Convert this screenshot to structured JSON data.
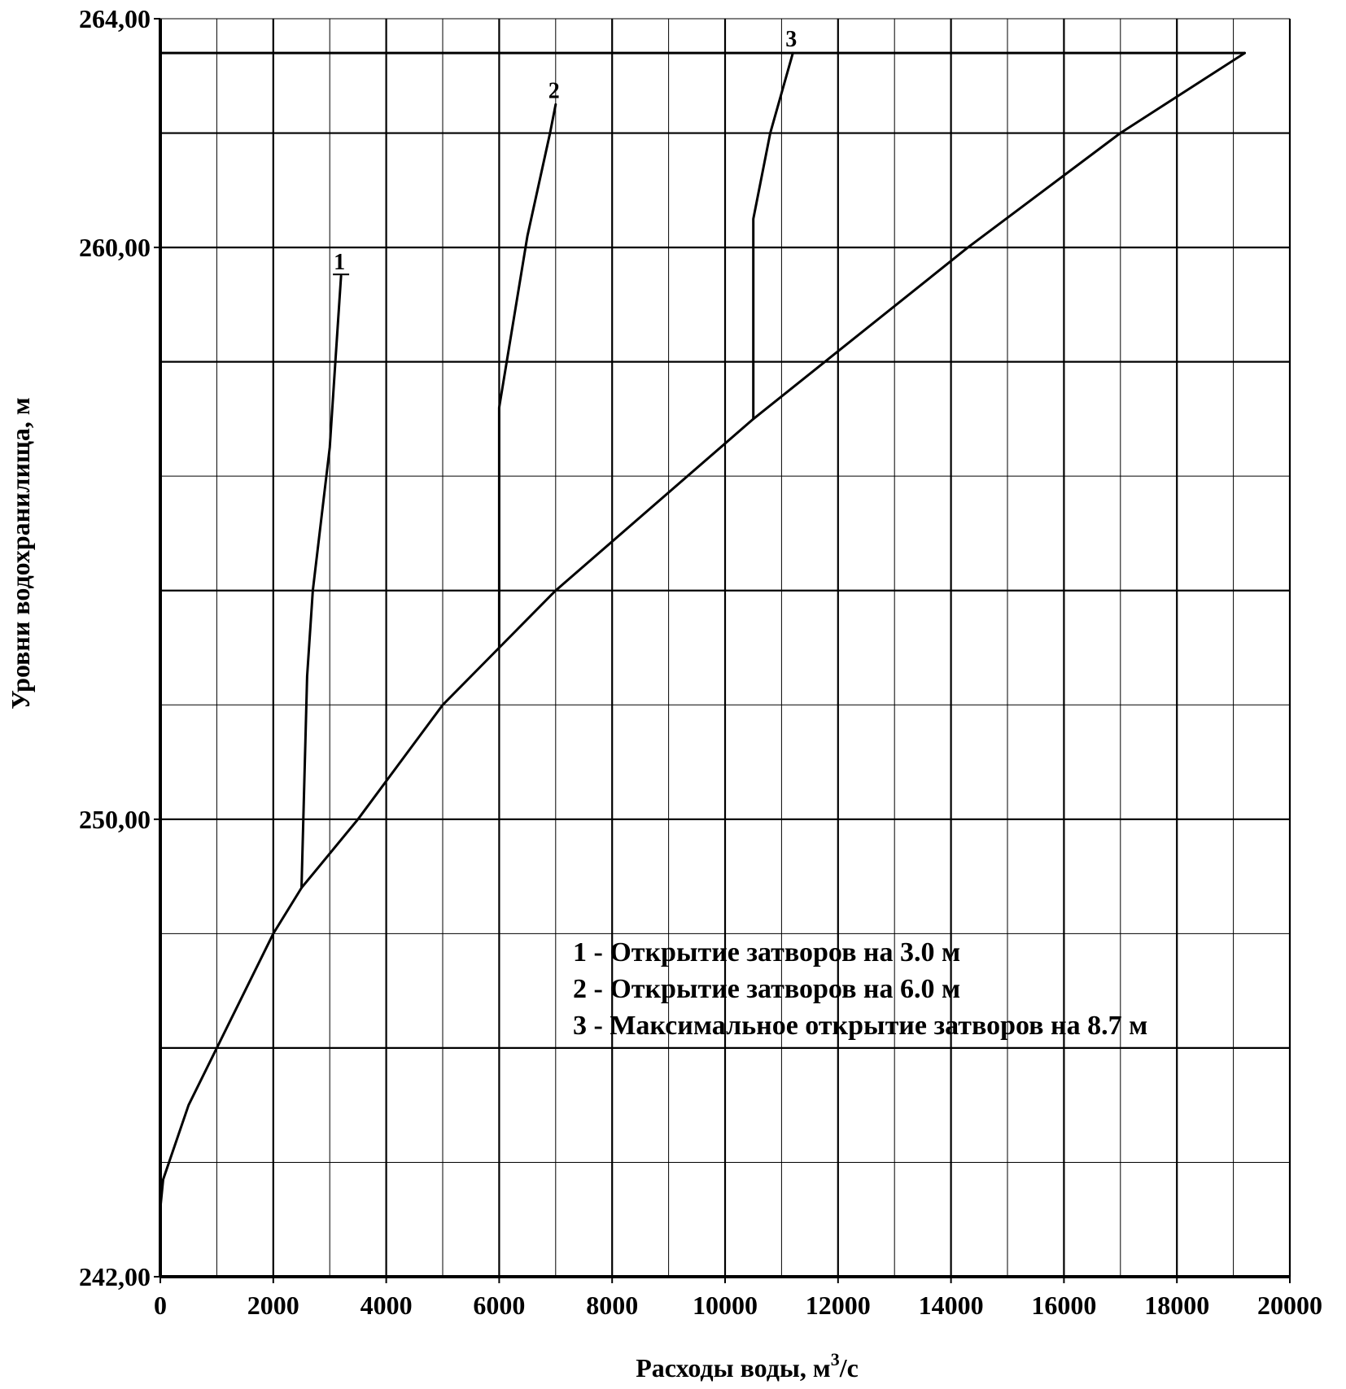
{
  "chart_data": {
    "type": "line",
    "xlabel": "Расходы воды, м",
    "xlabel_superscript": "3",
    "xlabel_suffix": "/с",
    "ylabel": "Уровни водохранилища,  м",
    "xlim": [
      0,
      20000
    ],
    "ylim": [
      242,
      264
    ],
    "x_ticks": [
      0,
      2000,
      4000,
      6000,
      8000,
      10000,
      12000,
      14000,
      16000,
      18000,
      20000
    ],
    "x_tick_labels": [
      "0",
      "2000",
      "4000",
      "6000",
      "8000",
      "10000",
      "12000",
      "14000",
      "16000",
      "18000",
      "20000"
    ],
    "y_ticks": [
      242,
      250,
      260,
      264
    ],
    "y_tick_labels": [
      "242,00",
      "250,00",
      "260,00",
      "264,00"
    ],
    "grid": true,
    "legend_position": "lower-right",
    "legend": [
      "1 - Открытие затворов на 3.0 м",
      "2 - Открытие затворов на 6.0 м",
      "3 - Максимальное открытие затворов на 8.7 м"
    ],
    "series": [
      {
        "id": "free_flow",
        "x": [
          0,
          50,
          500,
          1000,
          2000,
          2500,
          3500,
          5000,
          6000,
          7000,
          10500,
          14300,
          17000,
          19200
        ],
        "y": [
          243.2,
          243.7,
          245.0,
          246.0,
          248.0,
          248.8,
          250.0,
          252.0,
          253.0,
          254.0,
          257.0,
          260.0,
          262.0,
          263.4
        ]
      },
      {
        "id": "1",
        "label": "1",
        "x": [
          2500,
          2600,
          2700,
          3000,
          3100,
          3200
        ],
        "y": [
          248.8,
          252.5,
          254.0,
          256.5,
          258.0,
          259.5
        ]
      },
      {
        "id": "2",
        "label": "2",
        "x": [
          6000,
          6000,
          6500,
          6900,
          7000
        ],
        "y": [
          253.0,
          257.2,
          260.2,
          262.0,
          262.5
        ]
      },
      {
        "id": "3",
        "label": "3",
        "x": [
          10500,
          10500,
          10800,
          11000,
          11200
        ],
        "y": [
          257.0,
          260.5,
          262.0,
          262.7,
          263.4
        ]
      }
    ],
    "horizontal_line": {
      "y": 263.4,
      "x": [
        0,
        19200
      ]
    }
  }
}
